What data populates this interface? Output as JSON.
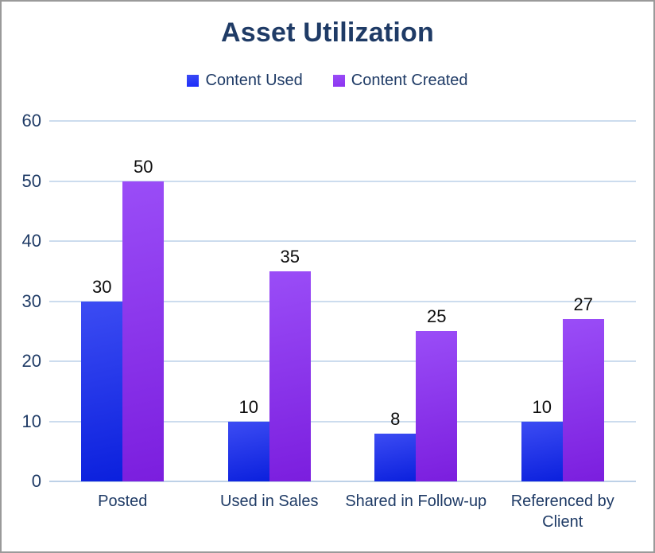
{
  "page": {
    "background": "#ffffff",
    "border_color": "#9a9a9a"
  },
  "chart_data": {
    "type": "bar",
    "title": "Asset Utilization",
    "title_color": "#1f3b66",
    "categories": [
      [
        "Posted"
      ],
      [
        "Used in Sales"
      ],
      [
        "Shared in Follow-up"
      ],
      [
        "Referenced by",
        "Client"
      ]
    ],
    "series": [
      {
        "name": "Content Used",
        "values": [
          30,
          10,
          8,
          10
        ],
        "color_top": "#3c4cf3",
        "color_bottom": "#0b20dd",
        "legend_color": "#1b2bfb"
      },
      {
        "name": "Content Created",
        "values": [
          50,
          35,
          25,
          27
        ],
        "color_top": "#9a4df7",
        "color_bottom": "#7b1ede",
        "legend_color": "#8c33f0"
      }
    ],
    "ylim": [
      0,
      60
    ],
    "yticks": [
      "0",
      "10",
      "20",
      "30",
      "40",
      "50",
      "60"
    ],
    "grid": "horizontal",
    "gridline_color": "#ccdcee",
    "baseline_color": "#bdd1e7",
    "axis_label_color": "#1f3b66",
    "value_label_color": "#0d0d0d",
    "legend_position": "top",
    "xlabel": "",
    "ylabel": ""
  }
}
